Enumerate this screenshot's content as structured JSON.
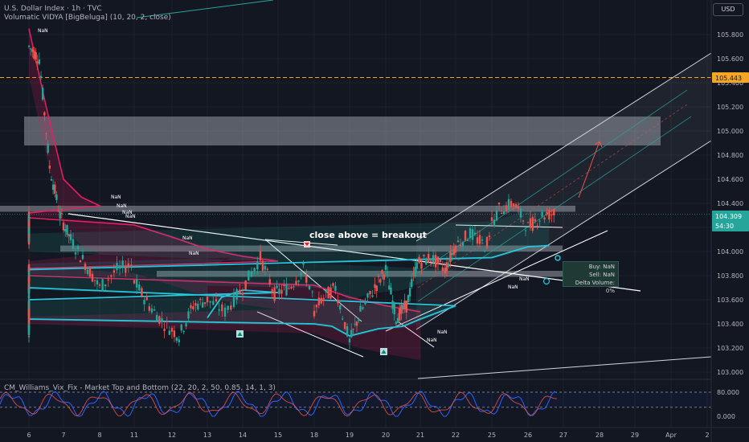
{
  "header": {
    "title": "U.S. Dollar Index · 1h · TVC",
    "indicator": "Volumatic VIDYA [BigBeluga] (10, 20, 2, close)",
    "oscillator": "CM_Williams_Vix_Fix - Market Top and Bottom (22, 20, 2, 50, 0.85, 14, 1, 3)"
  },
  "currency_button": "USD",
  "price_tags": {
    "last": "104.309",
    "countdown": "54:30",
    "level": "105.443"
  },
  "annotations": {
    "breakout": "close above  = breakout",
    "nan": "NaN"
  },
  "panel": {
    "buy": "Buy: NaN",
    "sell": "Sell: NaN",
    "delta": "Delta Volume: 0%"
  },
  "colors": {
    "bg": "#131722",
    "up": "#26a69a",
    "down": "#ef5350",
    "vidya_bear": "#e91e63",
    "vidya_bull": "#26c6da",
    "vix_blue": "#2962ff",
    "vix_red": "#ef5350"
  },
  "chart_data": {
    "type": "line",
    "title": "U.S. Dollar Index · 1h · TVC",
    "xlabel": "",
    "ylabel": "",
    "x_ticks": [
      "6",
      "7",
      "8",
      "11",
      "12",
      "13",
      "14",
      "15",
      "18",
      "19",
      "20",
      "21",
      "22",
      "25",
      "26",
      "27",
      "28",
      "29",
      "Apr",
      "2"
    ],
    "y_ticks": [
      103.0,
      103.2,
      103.4,
      103.6,
      103.8,
      104.0,
      104.2,
      104.4,
      104.6,
      104.8,
      105.0,
      105.2,
      105.4,
      105.6,
      105.8
    ],
    "ylim": [
      102.95,
      106.05
    ],
    "price_path": [
      [
        6,
        105.7
      ],
      [
        6.3,
        105.6
      ],
      [
        6.6,
        104.7
      ],
      [
        6.9,
        104.3
      ],
      [
        7.2,
        104.1
      ],
      [
        7.6,
        103.9
      ],
      [
        8,
        103.7
      ],
      [
        8.5,
        103.85
      ],
      [
        9,
        103.9
      ],
      [
        9.5,
        103.75
      ],
      [
        10,
        103.7
      ],
      [
        10.5,
        103.65
      ],
      [
        11,
        103.75
      ],
      [
        11.4,
        103.55
      ],
      [
        11.8,
        103.4
      ],
      [
        12.2,
        103.3
      ],
      [
        12.6,
        103.55
      ],
      [
        13,
        103.6
      ],
      [
        13.5,
        103.5
      ],
      [
        14,
        103.7
      ],
      [
        14.5,
        103.95
      ],
      [
        14.9,
        103.65
      ],
      [
        15.3,
        103.7
      ],
      [
        15.7,
        103.85
      ],
      [
        16.2,
        103.45
      ],
      [
        16.6,
        103.55
      ],
      [
        17,
        103.6
      ],
      [
        17.4,
        103.3
      ],
      [
        17.8,
        103.4
      ],
      [
        18.2,
        103.6
      ],
      [
        18.6,
        103.7
      ],
      [
        19,
        103.25
      ],
      [
        19.3,
        103.5
      ],
      [
        19.7,
        103.7
      ],
      [
        20,
        103.85
      ],
      [
        20.3,
        103.45
      ],
      [
        20.6,
        103.55
      ],
      [
        20.9,
        103.9
      ],
      [
        21.3,
        103.95
      ],
      [
        21.7,
        103.85
      ],
      [
        22,
        104.05
      ],
      [
        22.4,
        104.15
      ],
      [
        22.8,
        104.05
      ],
      [
        23.2,
        104.2
      ],
      [
        23.6,
        104.3
      ],
      [
        24,
        104.15
      ],
      [
        24.4,
        104.25
      ],
      [
        24.8,
        104.1
      ],
      [
        25.2,
        104.35
      ],
      [
        25.6,
        104.4
      ],
      [
        26,
        104.2
      ],
      [
        26.4,
        104.3
      ],
      [
        26.8,
        104.32
      ]
    ],
    "vidya_bear": [
      [
        6,
        105.85
      ],
      [
        6.5,
        105.2
      ],
      [
        7,
        104.6
      ],
      [
        7.5,
        104.45
      ],
      [
        8,
        104.38
      ],
      [
        9,
        104.32
      ],
      [
        10,
        104.28
      ],
      [
        11,
        104.22
      ],
      [
        12,
        104.12
      ],
      [
        13,
        104.02
      ],
      [
        14,
        103.96
      ],
      [
        15,
        103.92
      ],
      [
        16,
        103.86
      ],
      [
        17,
        103.8
      ],
      [
        18,
        103.72
      ],
      [
        19,
        103.62
      ],
      [
        20,
        103.55
      ],
      [
        21,
        103.5
      ]
    ],
    "vidya_bull": [
      [
        13,
        103.45
      ],
      [
        13.4,
        103.62
      ],
      [
        14,
        103.68
      ],
      [
        15,
        103.66
      ],
      [
        16,
        103.6
      ],
      [
        16.6,
        103.45
      ],
      [
        17,
        103.42
      ],
      [
        17.5,
        103.44
      ],
      [
        18,
        103.4
      ],
      [
        18.5,
        103.38
      ],
      [
        19,
        103.3
      ],
      [
        19.8,
        103.36
      ],
      [
        20.5,
        103.38
      ],
      [
        21,
        103.44
      ],
      [
        22,
        103.55
      ],
      [
        23,
        103.7
      ],
      [
        24,
        103.85
      ],
      [
        25,
        103.95
      ],
      [
        26,
        104.04
      ],
      [
        26.6,
        104.05
      ]
    ],
    "zones": [
      {
        "top": 105.12,
        "bottom": 104.88
      },
      {
        "top": 104.38,
        "bottom": 104.33
      },
      {
        "top": 104.05,
        "bottom": 104.0
      },
      {
        "top": 103.84,
        "bottom": 103.79
      }
    ],
    "horizontal_level": 105.443,
    "last_price": 104.309,
    "oscillator": {
      "ylim": [
        0,
        80
      ],
      "ticks": [
        "80.000",
        "0.000"
      ]
    }
  }
}
